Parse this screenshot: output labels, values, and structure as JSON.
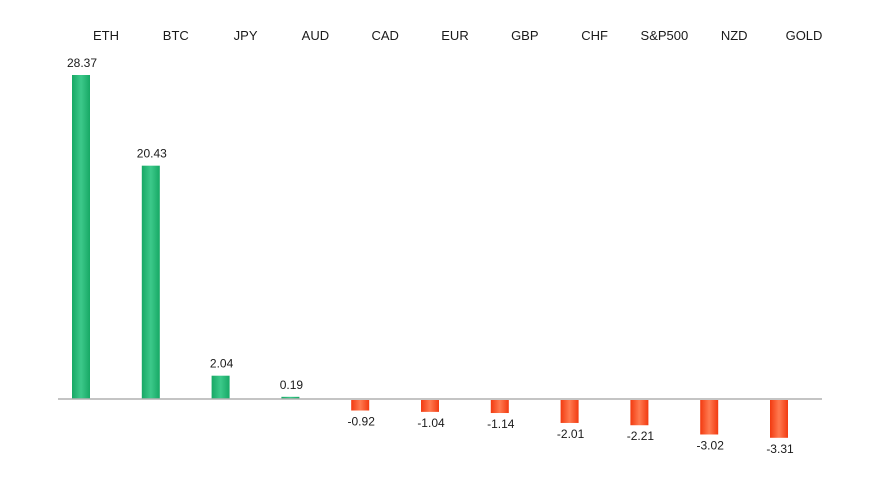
{
  "chart_data": {
    "type": "bar",
    "categories": [
      "ETH",
      "BTC",
      "JPY",
      "AUD",
      "CAD",
      "EUR",
      "GBP",
      "CHF",
      "S&P500",
      "NZD",
      "GOLD"
    ],
    "values": [
      28.37,
      20.43,
      2.04,
      0.19,
      -0.92,
      -1.04,
      -1.14,
      -2.01,
      -2.21,
      -3.02,
      -3.31
    ],
    "value_labels": [
      "28.37",
      "20.43",
      "2.04",
      "0.19",
      "-0.92",
      "-1.04",
      "-1.14",
      "-2.01",
      "-2.21",
      "-3.02",
      "-3.31"
    ],
    "title": "",
    "xlabel": "",
    "ylabel": "",
    "ylim": [
      -3.31,
      28.37
    ],
    "category_labels_position": "top",
    "grid": false,
    "colors": {
      "positive": "#17a865",
      "positive_light": "#3cc98a",
      "negative": "#f23a10",
      "negative_light": "#ff7a50",
      "axis": "#b0b0b0"
    }
  }
}
